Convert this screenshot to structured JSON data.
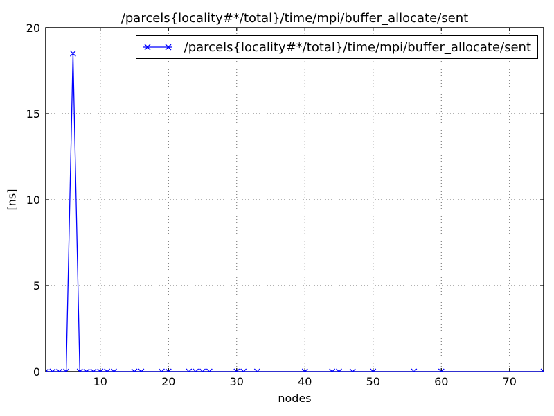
{
  "chart_data": {
    "type": "line",
    "title": "/parcels{locality#*/total}/time/mpi/buffer_allocate/sent",
    "xlabel": "nodes",
    "ylabel": "[ns]",
    "xlim": [
      2,
      75
    ],
    "ylim": [
      0,
      20
    ],
    "xticks": [
      10,
      20,
      30,
      40,
      50,
      60,
      70
    ],
    "yticks": [
      0,
      5,
      10,
      15,
      20
    ],
    "grid": {
      "visible": true,
      "style": "dotted"
    },
    "background_color": "#ffffff",
    "legend": {
      "label": "/parcels{locality#*/total}/time/mpi/buffer_allocate/sent",
      "position": "upper right",
      "marker": "x"
    },
    "series": [
      {
        "name": "/parcels{locality#*/total}/time/mpi/buffer_allocate/sent",
        "color": "#0000ff",
        "marker": "x",
        "x": [
          2,
          3,
          4,
          5,
          6,
          7,
          8,
          9,
          10,
          11,
          12,
          15,
          16,
          19,
          20,
          23,
          24,
          25,
          26,
          30,
          31,
          33,
          40,
          44,
          45,
          47,
          50,
          56,
          60,
          75
        ],
        "y": [
          0,
          0,
          0,
          0,
          18.5,
          0,
          0,
          0,
          0,
          0,
          0,
          0,
          0,
          0,
          0,
          0,
          0,
          0,
          0,
          0,
          0,
          0,
          0,
          0,
          0,
          0,
          0,
          0,
          0,
          0
        ]
      }
    ]
  }
}
